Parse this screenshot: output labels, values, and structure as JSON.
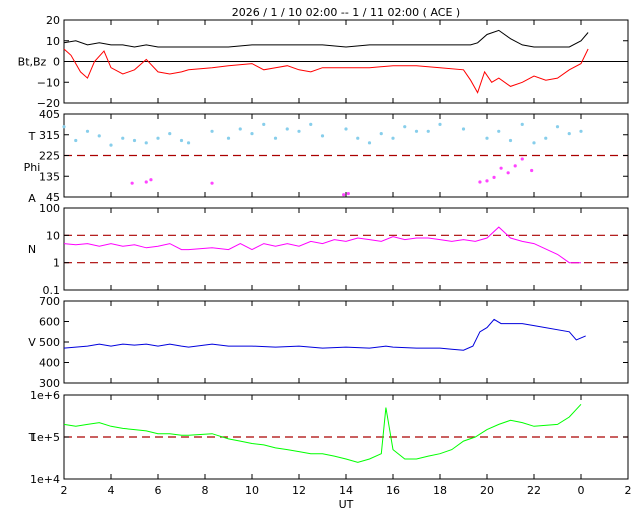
{
  "chart_data": {
    "type": "line",
    "title": "2026 /  1 / 10   02:00 --  1 / 11   02:00 ( ACE )",
    "xlabel": "UT",
    "x_ticks": [
      "2",
      "4",
      "6",
      "8",
      "10",
      "12",
      "14",
      "16",
      "18",
      "20",
      "22",
      "0",
      "2"
    ],
    "x_range_hours": [
      2,
      26
    ],
    "colors": {
      "bt": "#000000",
      "bz": "#ff0000",
      "phi": "#ff44ff",
      "theta": "#87ceeb",
      "dash": "#aa0000",
      "n": "#ff00ff",
      "v": "#0000dd",
      "temp": "#00ff00"
    },
    "panels": [
      {
        "ylabel": "Bt,Bz",
        "ylim": [
          -20,
          20
        ],
        "yticks": [
          "20",
          "10",
          "0",
          "−10",
          "−20"
        ],
        "series": [
          {
            "key": "bt",
            "x": [
              2,
              2.5,
              3,
              3.5,
              4,
              4.5,
              5,
              5.5,
              6,
              6.5,
              7,
              7.3,
              8.3,
              9,
              10,
              11,
              12,
              13,
              14,
              15,
              16,
              17,
              18,
              19,
              19.3,
              19.6,
              20,
              20.5,
              21,
              21.5,
              22,
              22.5,
              23,
              23.5,
              24,
              24.3
            ],
            "y": [
              9,
              10,
              8,
              9,
              8,
              8,
              7,
              8,
              7,
              7,
              7,
              7,
              7,
              7,
              8,
              8,
              8,
              8,
              7,
              8,
              8,
              8,
              8,
              8,
              8,
              9,
              13,
              15,
              11,
              8,
              7,
              7,
              7,
              7,
              10,
              14
            ]
          },
          {
            "key": "bz",
            "x": [
              2,
              2.3,
              2.7,
              3,
              3.3,
              3.7,
              4,
              4.5,
              5,
              5.5,
              6,
              6.5,
              7,
              7.3,
              8.3,
              9,
              10,
              10.5,
              11,
              11.5,
              12,
              12.5,
              13,
              14,
              15,
              16,
              17,
              18,
              19,
              19.3,
              19.6,
              19.9,
              20.2,
              20.5,
              21,
              21.5,
              22,
              22.5,
              23,
              23.5,
              24,
              24.3
            ],
            "y": [
              6,
              3,
              -5,
              -8,
              0,
              5,
              -3,
              -6,
              -4,
              1,
              -5,
              -6,
              -5,
              -4,
              -3,
              -2,
              -1,
              -4,
              -3,
              -2,
              -4,
              -5,
              -3,
              -3,
              -3,
              -2,
              -2,
              -3,
              -4,
              -9,
              -15,
              -5,
              -10,
              -8,
              -12,
              -10,
              -7,
              -9,
              -8,
              -4,
              -1,
              6
            ]
          }
        ]
      },
      {
        "ylabel": "T\nPhi\nA",
        "ylim": [
          45,
          405
        ],
        "yticks": [
          "405",
          "315",
          "225",
          "135",
          "45"
        ],
        "dash_lines": [
          225
        ],
        "series": [
          {
            "key": "theta",
            "x": [
              2,
              2.5,
              3,
              3.5,
              4,
              4.5,
              5,
              5.5,
              6,
              6.5,
              7,
              7.3,
              8.3,
              9,
              9.5,
              10,
              10.5,
              11,
              11.5,
              12,
              12.5,
              13,
              14,
              14.5,
              15,
              15.5,
              16,
              16.5,
              17,
              17.5,
              18,
              19,
              20,
              20.5,
              21,
              21.5,
              22,
              22.5,
              23,
              23.5,
              24
            ],
            "y": [
              350,
              290,
              330,
              310,
              270,
              300,
              290,
              280,
              300,
              320,
              290,
              280,
              330,
              300,
              340,
              320,
              360,
              300,
              340,
              330,
              360,
              310,
              340,
              300,
              280,
              320,
              300,
              350,
              330,
              330,
              360,
              340,
              300,
              330,
              290,
              360,
              280,
              300,
              350,
              320,
              330
            ]
          },
          {
            "key": "phi",
            "x": [
              4.9,
              5.5,
              5.7,
              8.3,
              13.9,
              14.1,
              19.7,
              20,
              20.3,
              20.6,
              20.9,
              21.2,
              21.5,
              21.9
            ],
            "y": [
              105,
              110,
              120,
              105,
              55,
              60,
              110,
              115,
              130,
              170,
              150,
              180,
              210,
              160
            ]
          }
        ]
      },
      {
        "ylabel": "N",
        "scale": "log",
        "ylim": [
          0.1,
          100
        ],
        "yticks": [
          "100",
          "10",
          "1",
          "0.1"
        ],
        "dash_lines": [
          10,
          1
        ],
        "series": [
          {
            "key": "n",
            "x": [
              2,
              2.5,
              3,
              3.5,
              4,
              4.5,
              5,
              5.5,
              6,
              6.5,
              7,
              7.3,
              8.3,
              9,
              9.5,
              10,
              10.5,
              11,
              11.5,
              12,
              12.5,
              13,
              13.5,
              14,
              14.5,
              15,
              15.5,
              16,
              16.5,
              17,
              17.5,
              18,
              18.5,
              19,
              19.5,
              20,
              20.5,
              21,
              21.5,
              22,
              23,
              23.5,
              24
            ],
            "y": [
              5,
              4.5,
              5,
              4,
              5,
              4,
              4.5,
              3.5,
              4,
              5,
              3,
              3,
              3.5,
              3,
              5,
              3,
              5,
              4,
              5,
              4,
              6,
              5,
              7,
              6,
              8,
              7,
              6,
              9,
              7,
              8,
              8,
              7,
              6,
              7,
              6,
              8,
              20,
              8,
              6,
              5,
              2,
              1,
              1
            ]
          }
        ]
      },
      {
        "ylabel": "V",
        "ylim": [
          300,
          700
        ],
        "yticks": [
          "700",
          "600",
          "500",
          "400",
          "300"
        ],
        "series": [
          {
            "key": "v",
            "x": [
              2,
              2.5,
              3,
              3.5,
              4,
              4.5,
              5,
              5.5,
              6,
              6.5,
              7,
              7.3,
              8.3,
              9,
              10,
              11,
              12,
              13,
              14,
              15,
              15.7,
              16,
              17,
              18,
              18.5,
              19,
              19.4,
              19.7,
              20,
              20.3,
              20.6,
              21,
              21.5,
              22,
              23.5,
              23.8,
              24,
              24.2
            ],
            "y": [
              470,
              475,
              480,
              490,
              480,
              490,
              485,
              490,
              480,
              490,
              480,
              475,
              490,
              480,
              480,
              475,
              480,
              470,
              475,
              470,
              480,
              475,
              470,
              470,
              465,
              460,
              480,
              550,
              570,
              610,
              590,
              590,
              590,
              580,
              550,
              510,
              520,
              530
            ]
          }
        ]
      },
      {
        "ylabel": "T",
        "scale": "log",
        "ylim": [
          10000,
          1000000
        ],
        "yticks": [
          "1e+6",
          "1e+5",
          "1e+4"
        ],
        "dash_lines": [
          100000
        ],
        "series": [
          {
            "key": "temp",
            "x": [
              2,
              2.5,
              3,
              3.5,
              4,
              4.5,
              5,
              5.5,
              6,
              6.5,
              7,
              7.3,
              8.3,
              9,
              9.5,
              10,
              10.5,
              11,
              11.5,
              12,
              12.5,
              13,
              13.5,
              14,
              14.5,
              15,
              15.5,
              15.7,
              16,
              16.5,
              17,
              17.5,
              18,
              18.5,
              19,
              19.5,
              20,
              20.5,
              21,
              21.5,
              22,
              23,
              23.5,
              24
            ],
            "y": [
              200000,
              180000,
              200000,
              220000,
              180000,
              160000,
              150000,
              140000,
              120000,
              120000,
              110000,
              110000,
              120000,
              90000,
              80000,
              70000,
              65000,
              55000,
              50000,
              45000,
              40000,
              40000,
              35000,
              30000,
              25000,
              30000,
              40000,
              500000,
              50000,
              30000,
              30000,
              35000,
              40000,
              50000,
              80000,
              100000,
              150000,
              200000,
              250000,
              220000,
              180000,
              200000,
              300000,
              600000
            ]
          }
        ]
      }
    ]
  }
}
